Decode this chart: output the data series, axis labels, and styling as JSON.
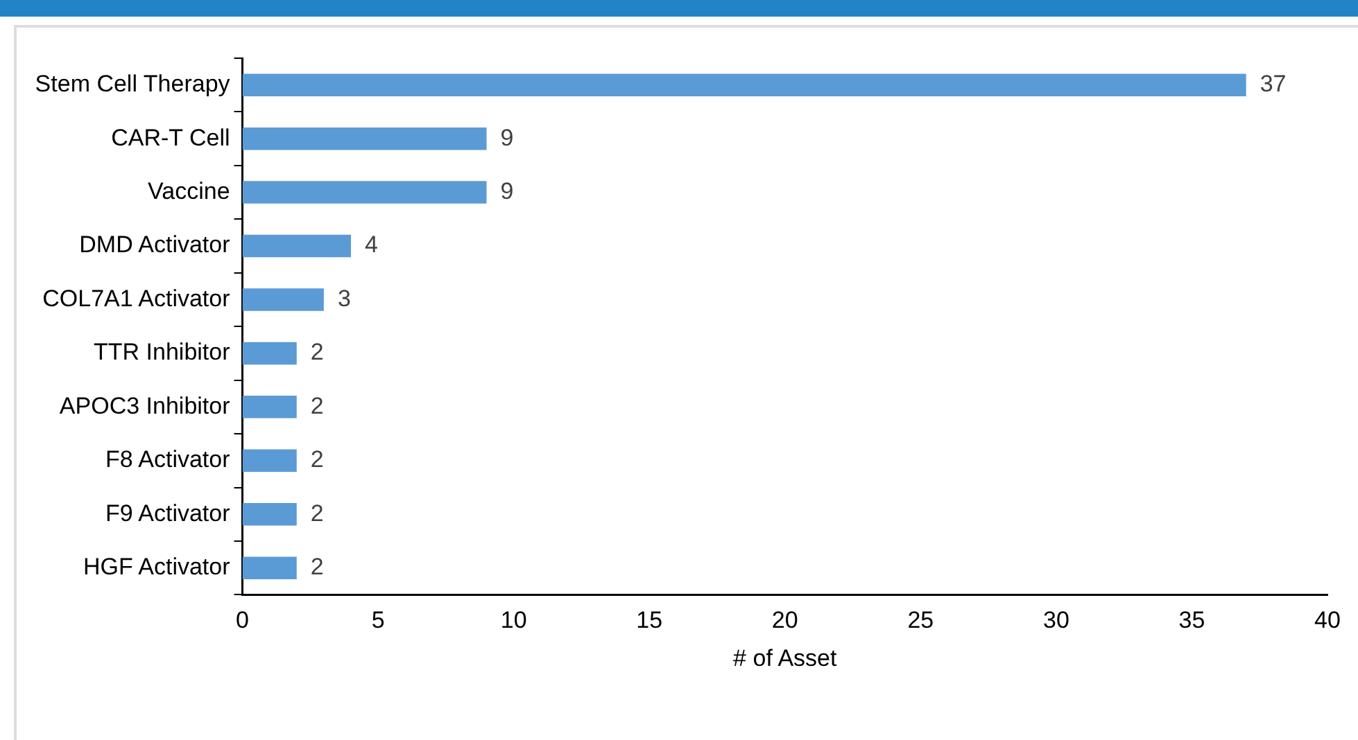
{
  "chart_data": {
    "type": "bar",
    "orientation": "horizontal",
    "xlabel": "# of Asset",
    "categories": [
      "Stem Cell Therapy",
      "CAR-T Cell",
      "Vaccine",
      "DMD Activator",
      "COL7A1 Activator",
      "TTR Inhibitor",
      "APOC3 Inhibitor",
      "F8 Activator",
      "F9 Activator",
      "HGF Activator"
    ],
    "values": [
      37,
      9,
      9,
      4,
      3,
      2,
      2,
      2,
      2,
      2
    ],
    "color": "#5b9bd5",
    "xlim": [
      0,
      40
    ],
    "xticks": [
      0,
      5,
      10,
      15,
      20,
      25,
      30,
      35,
      40
    ],
    "grid": false,
    "legend": false,
    "data_labels": true
  }
}
